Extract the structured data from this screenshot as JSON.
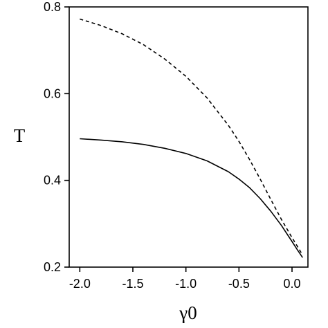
{
  "chart_data": {
    "type": "line",
    "title": "",
    "xlabel": "γ0",
    "ylabel": "T",
    "xlim": [
      -2.1,
      0.15
    ],
    "ylim": [
      0.2,
      0.8
    ],
    "x_ticks": [
      -2.0,
      -1.5,
      -1.0,
      -0.5,
      0.0
    ],
    "x_tick_labels": [
      "-2.0",
      "-1.5",
      "-1.0",
      "-0.5",
      "0.0"
    ],
    "y_ticks": [
      0.2,
      0.4,
      0.6,
      0.8
    ],
    "y_tick_labels": [
      "0.2",
      "0.4",
      "0.6",
      "0.8"
    ],
    "grid": false,
    "legend": "none",
    "series": [
      {
        "style": "solid",
        "color": "#000000",
        "x": [
          -2.0,
          -1.8,
          -1.6,
          -1.4,
          -1.2,
          -1.0,
          -0.8,
          -0.6,
          -0.5,
          -0.4,
          -0.3,
          -0.2,
          -0.1,
          0.0,
          0.05,
          0.1
        ],
        "y": [
          0.496,
          0.493,
          0.489,
          0.483,
          0.474,
          0.462,
          0.445,
          0.42,
          0.403,
          0.383,
          0.358,
          0.329,
          0.296,
          0.259,
          0.24,
          0.222
        ]
      },
      {
        "style": "dashed",
        "color": "#000000",
        "x": [
          -2.0,
          -1.8,
          -1.6,
          -1.4,
          -1.2,
          -1.0,
          -0.8,
          -0.6,
          -0.5,
          -0.4,
          -0.3,
          -0.2,
          -0.1,
          0.0,
          0.05,
          0.1
        ],
        "y": [
          0.772,
          0.757,
          0.738,
          0.713,
          0.68,
          0.64,
          0.59,
          0.527,
          0.49,
          0.448,
          0.403,
          0.356,
          0.31,
          0.268,
          0.248,
          0.228
        ]
      }
    ]
  }
}
